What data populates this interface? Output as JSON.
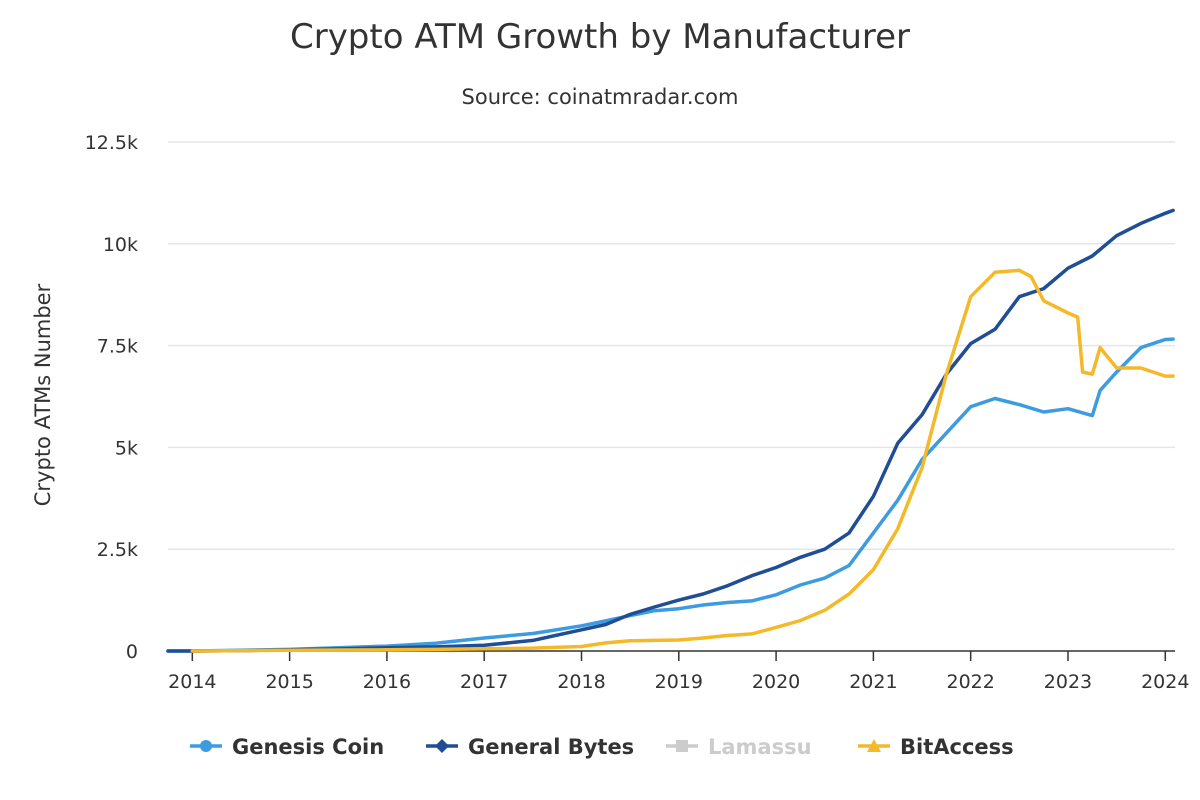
{
  "chart_data": {
    "type": "line",
    "title": "Crypto ATM Growth by Manufacturer",
    "subtitle": "Source: coinatmradar.com",
    "xlabel": "",
    "ylabel": "Crypto ATMs Number",
    "xlim": [
      2013.75,
      2024.1
    ],
    "ylim": [
      0,
      12500
    ],
    "x_ticks": [
      {
        "value": 2014,
        "label": "2014"
      },
      {
        "value": 2015,
        "label": "2015"
      },
      {
        "value": 2016,
        "label": "2016"
      },
      {
        "value": 2017,
        "label": "2017"
      },
      {
        "value": 2018,
        "label": "2018"
      },
      {
        "value": 2019,
        "label": "2019"
      },
      {
        "value": 2020,
        "label": "2020"
      },
      {
        "value": 2021,
        "label": "2021"
      },
      {
        "value": 2022,
        "label": "2022"
      },
      {
        "value": 2023,
        "label": "2023"
      },
      {
        "value": 2024,
        "label": "2024"
      }
    ],
    "y_ticks": [
      {
        "value": 0,
        "label": "0"
      },
      {
        "value": 2500,
        "label": "2.5k"
      },
      {
        "value": 5000,
        "label": "5k"
      },
      {
        "value": 7500,
        "label": "7.5k"
      },
      {
        "value": 10000,
        "label": "10k"
      },
      {
        "value": 12500,
        "label": "12.5k"
      }
    ],
    "grid": true,
    "legend_position": "bottom-center",
    "series": [
      {
        "name": "Genesis Coin",
        "color": "#3d9be0",
        "marker": "circle",
        "visible": true,
        "points": [
          [
            2013.75,
            0
          ],
          [
            2014.0,
            0
          ],
          [
            2014.5,
            20
          ],
          [
            2015.0,
            40
          ],
          [
            2015.5,
            80
          ],
          [
            2016.0,
            120
          ],
          [
            2016.5,
            190
          ],
          [
            2017.0,
            320
          ],
          [
            2017.5,
            430
          ],
          [
            2018.0,
            620
          ],
          [
            2018.25,
            740
          ],
          [
            2018.5,
            870
          ],
          [
            2018.75,
            990
          ],
          [
            2019.0,
            1040
          ],
          [
            2019.25,
            1130
          ],
          [
            2019.5,
            1190
          ],
          [
            2019.75,
            1230
          ],
          [
            2020.0,
            1380
          ],
          [
            2020.25,
            1620
          ],
          [
            2020.5,
            1790
          ],
          [
            2020.75,
            2100
          ],
          [
            2021.0,
            2900
          ],
          [
            2021.25,
            3700
          ],
          [
            2021.5,
            4700
          ],
          [
            2021.75,
            5350
          ],
          [
            2022.0,
            6000
          ],
          [
            2022.25,
            6200
          ],
          [
            2022.5,
            6050
          ],
          [
            2022.75,
            5870
          ],
          [
            2023.0,
            5950
          ],
          [
            2023.25,
            5780
          ],
          [
            2023.33,
            6400
          ],
          [
            2023.5,
            6850
          ],
          [
            2023.75,
            7450
          ],
          [
            2024.0,
            7650
          ],
          [
            2024.08,
            7660
          ]
        ]
      },
      {
        "name": "General Bytes",
        "color": "#1f4e96",
        "marker": "diamond",
        "visible": true,
        "points": [
          [
            2013.75,
            0
          ],
          [
            2014.0,
            0
          ],
          [
            2014.5,
            10
          ],
          [
            2015.0,
            30
          ],
          [
            2015.5,
            50
          ],
          [
            2016.0,
            80
          ],
          [
            2016.5,
            100
          ],
          [
            2017.0,
            140
          ],
          [
            2017.5,
            260
          ],
          [
            2018.0,
            520
          ],
          [
            2018.25,
            650
          ],
          [
            2018.5,
            900
          ],
          [
            2018.75,
            1080
          ],
          [
            2019.0,
            1250
          ],
          [
            2019.25,
            1400
          ],
          [
            2019.5,
            1600
          ],
          [
            2019.75,
            1850
          ],
          [
            2020.0,
            2050
          ],
          [
            2020.25,
            2300
          ],
          [
            2020.5,
            2500
          ],
          [
            2020.75,
            2900
          ],
          [
            2021.0,
            3800
          ],
          [
            2021.25,
            5100
          ],
          [
            2021.5,
            5800
          ],
          [
            2021.75,
            6800
          ],
          [
            2022.0,
            7550
          ],
          [
            2022.25,
            7900
          ],
          [
            2022.5,
            8700
          ],
          [
            2022.75,
            8900
          ],
          [
            2023.0,
            9400
          ],
          [
            2023.25,
            9700
          ],
          [
            2023.5,
            10200
          ],
          [
            2023.75,
            10500
          ],
          [
            2024.0,
            10750
          ],
          [
            2024.08,
            10820
          ]
        ]
      },
      {
        "name": "Lamassu",
        "color": "#cccccc",
        "marker": "square",
        "visible": false,
        "points": []
      },
      {
        "name": "BitAccess",
        "color": "#f4b928",
        "marker": "triangle",
        "visible": true,
        "points": [
          [
            2014.0,
            0
          ],
          [
            2014.5,
            10
          ],
          [
            2015.0,
            20
          ],
          [
            2015.5,
            25
          ],
          [
            2016.0,
            30
          ],
          [
            2016.5,
            40
          ],
          [
            2017.0,
            55
          ],
          [
            2017.5,
            70
          ],
          [
            2018.0,
            110
          ],
          [
            2018.25,
            200
          ],
          [
            2018.5,
            250
          ],
          [
            2018.75,
            260
          ],
          [
            2019.0,
            270
          ],
          [
            2019.25,
            320
          ],
          [
            2019.5,
            380
          ],
          [
            2019.75,
            420
          ],
          [
            2020.0,
            580
          ],
          [
            2020.25,
            750
          ],
          [
            2020.5,
            1000
          ],
          [
            2020.75,
            1400
          ],
          [
            2021.0,
            2000
          ],
          [
            2021.25,
            3000
          ],
          [
            2021.5,
            4500
          ],
          [
            2021.75,
            6800
          ],
          [
            2022.0,
            8700
          ],
          [
            2022.25,
            9300
          ],
          [
            2022.5,
            9350
          ],
          [
            2022.62,
            9200
          ],
          [
            2022.75,
            8600
          ],
          [
            2023.0,
            8300
          ],
          [
            2023.1,
            8200
          ],
          [
            2023.15,
            6850
          ],
          [
            2023.25,
            6800
          ],
          [
            2023.33,
            7450
          ],
          [
            2023.5,
            6950
          ],
          [
            2023.75,
            6950
          ],
          [
            2024.0,
            6750
          ],
          [
            2024.08,
            6750
          ]
        ]
      }
    ]
  }
}
